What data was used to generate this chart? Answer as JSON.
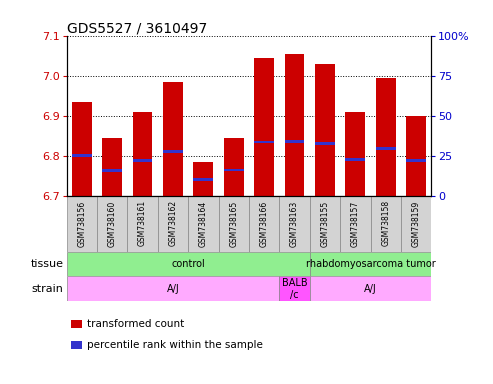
{
  "title": "GDS5527 / 3610497",
  "samples": [
    "GSM738156",
    "GSM738160",
    "GSM738161",
    "GSM738162",
    "GSM738164",
    "GSM738165",
    "GSM738166",
    "GSM738163",
    "GSM738155",
    "GSM738157",
    "GSM738158",
    "GSM738159"
  ],
  "bar_values": [
    6.935,
    6.845,
    6.91,
    6.985,
    6.785,
    6.845,
    7.045,
    7.055,
    7.03,
    6.91,
    6.997,
    6.9
  ],
  "blue_marker_values": [
    6.802,
    6.763,
    6.788,
    6.812,
    6.742,
    6.765,
    6.835,
    6.836,
    6.832,
    6.791,
    6.818,
    6.788
  ],
  "y_min": 6.7,
  "y_max": 7.1,
  "y_ticks": [
    6.7,
    6.8,
    6.9,
    7.0,
    7.1
  ],
  "y2_ticks": [
    0,
    25,
    50,
    75,
    100
  ],
  "bar_color": "#cc0000",
  "blue_color": "#3333cc",
  "bar_width": 0.65,
  "tissue_colors": [
    "#90ee90",
    "#90ee90"
  ],
  "tissue_texts": [
    "control",
    "rhabdomyosarcoma tumor"
  ],
  "tissue_starts": [
    0,
    8
  ],
  "tissue_ends": [
    8,
    12
  ],
  "strain_colors": [
    "#ffaaff",
    "#ff55ff",
    "#ffaaff"
  ],
  "strain_texts": [
    "A/J",
    "BALB\n/c",
    "A/J"
  ],
  "strain_starts": [
    0,
    7,
    8
  ],
  "strain_ends": [
    7,
    8,
    12
  ],
  "xlabel_color": "#cc0000",
  "y2label_color": "#0000cc",
  "tick_area_color": "#d3d3d3",
  "legend_items": [
    {
      "color": "#cc0000",
      "label": "transformed count"
    },
    {
      "color": "#3333cc",
      "label": "percentile rank within the sample"
    }
  ]
}
